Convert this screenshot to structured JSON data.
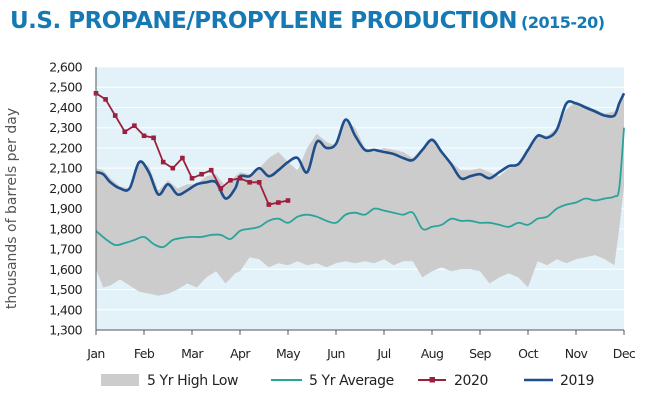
{
  "title": "U.S. PROPANE/PROPYLENE PRODUCTION",
  "subtitle": "(2015-20)",
  "chart_data": {
    "type": "line",
    "ylabel": "thousands of barrels per day",
    "ylim": [
      1300,
      2600
    ],
    "yticks": [
      1300,
      1400,
      1500,
      1600,
      1700,
      1800,
      1900,
      2000,
      2100,
      2200,
      2300,
      2400,
      2500,
      2600
    ],
    "ytick_labels": [
      "1,300",
      "1,400",
      "1,500",
      "1,600",
      "1,700",
      "1,800",
      "1,900",
      "2,000",
      "2,100",
      "2,200",
      "2,300",
      "2,400",
      "2,500",
      "2,600"
    ],
    "xlim": [
      0,
      11
    ],
    "month_labels": [
      "Jan",
      "Feb",
      "Mar",
      "Apr",
      "May",
      "Jun",
      "Jul",
      "Aug",
      "Sep",
      "Oct",
      "Nov",
      "Dec"
    ],
    "legend_position": "bottom",
    "colors": {
      "band": "#cccccc",
      "avg": "#2aa39b",
      "y2020": "#9c1f3c",
      "y2019": "#1f4e8c",
      "plot_bg": "#e3f2f9"
    },
    "band": {
      "name": "5 Yr High Low",
      "x": [
        0,
        0.15,
        0.3,
        0.5,
        0.7,
        0.9,
        1.1,
        1.3,
        1.5,
        1.7,
        1.9,
        2.1,
        2.3,
        2.5,
        2.7,
        2.9,
        3.0,
        3.2,
        3.4,
        3.6,
        3.8,
        4.0,
        4.2,
        4.4,
        4.6,
        4.8,
        5.0,
        5.2,
        5.4,
        5.6,
        5.8,
        6.0,
        6.2,
        6.4,
        6.6,
        6.8,
        7.0,
        7.2,
        7.4,
        7.6,
        7.8,
        8.0,
        8.2,
        8.4,
        8.6,
        8.8,
        9.0,
        9.2,
        9.4,
        9.6,
        9.8,
        10.0,
        10.2,
        10.4,
        10.6,
        10.8,
        10.9,
        11.0
      ],
      "low": [
        1600,
        1510,
        1520,
        1550,
        1520,
        1490,
        1480,
        1470,
        1480,
        1500,
        1530,
        1510,
        1560,
        1590,
        1530,
        1580,
        1590,
        1660,
        1650,
        1610,
        1630,
        1620,
        1640,
        1620,
        1630,
        1610,
        1630,
        1640,
        1630,
        1640,
        1630,
        1650,
        1620,
        1640,
        1640,
        1560,
        1590,
        1610,
        1590,
        1600,
        1600,
        1590,
        1530,
        1560,
        1580,
        1560,
        1510,
        1640,
        1620,
        1650,
        1630,
        1650,
        1660,
        1670,
        1650,
        1620,
        1800,
        2010
      ],
      "high": [
        2100,
        2090,
        2050,
        2010,
        2000,
        2130,
        2110,
        1990,
        2040,
        2000,
        2020,
        2020,
        2060,
        2070,
        2010,
        2060,
        2080,
        2070,
        2100,
        2150,
        2180,
        2130,
        2090,
        2200,
        2270,
        2230,
        2210,
        2340,
        2300,
        2200,
        2180,
        2200,
        2190,
        2180,
        2150,
        2200,
        2250,
        2190,
        2130,
        2090,
        2090,
        2100,
        2080,
        2060,
        2100,
        2120,
        2200,
        2270,
        2260,
        2300,
        2390,
        2430,
        2410,
        2390,
        2370,
        2380,
        2420,
        2470
      ]
    },
    "series": [
      {
        "name": "5 Yr Average",
        "x": [
          0,
          0.2,
          0.4,
          0.6,
          0.8,
          1.0,
          1.2,
          1.4,
          1.6,
          1.8,
          2.0,
          2.2,
          2.4,
          2.6,
          2.8,
          3.0,
          3.2,
          3.4,
          3.6,
          3.8,
          4.0,
          4.2,
          4.4,
          4.6,
          4.8,
          5.0,
          5.2,
          5.4,
          5.6,
          5.8,
          6.0,
          6.2,
          6.4,
          6.6,
          6.8,
          7.0,
          7.2,
          7.4,
          7.6,
          7.8,
          8.0,
          8.2,
          8.4,
          8.6,
          8.8,
          9.0,
          9.2,
          9.4,
          9.6,
          9.8,
          10.0,
          10.2,
          10.4,
          10.6,
          10.8,
          10.9,
          11.0
        ],
        "values": [
          1790,
          1750,
          1720,
          1730,
          1745,
          1760,
          1725,
          1710,
          1745,
          1755,
          1760,
          1760,
          1770,
          1770,
          1750,
          1790,
          1800,
          1810,
          1840,
          1850,
          1830,
          1860,
          1870,
          1860,
          1840,
          1830,
          1870,
          1880,
          1870,
          1900,
          1890,
          1880,
          1870,
          1880,
          1800,
          1810,
          1820,
          1850,
          1840,
          1840,
          1830,
          1830,
          1820,
          1810,
          1830,
          1820,
          1850,
          1860,
          1900,
          1920,
          1930,
          1950,
          1940,
          1950,
          1960,
          2000,
          2300
        ]
      },
      {
        "name": "2020",
        "x": [
          0,
          0.2,
          0.4,
          0.6,
          0.8,
          1.0,
          1.2,
          1.4,
          1.6,
          1.8,
          2.0,
          2.2,
          2.4,
          2.6,
          2.8,
          3.0,
          3.2,
          3.4,
          3.6,
          3.8,
          4.0
        ],
        "values": [
          2470,
          2440,
          2360,
          2280,
          2310,
          2260,
          2250,
          2130,
          2100,
          2150,
          2050,
          2070,
          2090,
          2000,
          2040,
          2050,
          2030,
          2030,
          1920,
          1930,
          1940
        ]
      },
      {
        "name": "2019",
        "x": [
          0,
          0.15,
          0.3,
          0.5,
          0.7,
          0.9,
          1.1,
          1.3,
          1.5,
          1.7,
          1.9,
          2.1,
          2.3,
          2.5,
          2.7,
          2.9,
          3.0,
          3.2,
          3.4,
          3.6,
          3.8,
          4.0,
          4.2,
          4.4,
          4.6,
          4.8,
          5.0,
          5.2,
          5.4,
          5.6,
          5.8,
          6.0,
          6.2,
          6.4,
          6.6,
          6.8,
          7.0,
          7.2,
          7.4,
          7.6,
          7.8,
          8.0,
          8.2,
          8.4,
          8.6,
          8.8,
          9.0,
          9.2,
          9.4,
          9.6,
          9.8,
          10.0,
          10.2,
          10.4,
          10.6,
          10.8,
          10.9,
          11.0
        ],
        "values": [
          2080,
          2070,
          2030,
          2000,
          2000,
          2130,
          2080,
          1970,
          2020,
          1970,
          1990,
          2020,
          2030,
          2030,
          1950,
          2000,
          2060,
          2060,
          2100,
          2060,
          2090,
          2130,
          2150,
          2080,
          2230,
          2200,
          2220,
          2340,
          2260,
          2190,
          2190,
          2180,
          2170,
          2150,
          2140,
          2190,
          2240,
          2180,
          2120,
          2050,
          2060,
          2070,
          2050,
          2080,
          2110,
          2120,
          2190,
          2260,
          2250,
          2290,
          2420,
          2420,
          2400,
          2380,
          2360,
          2360,
          2420,
          2470
        ]
      }
    ]
  }
}
